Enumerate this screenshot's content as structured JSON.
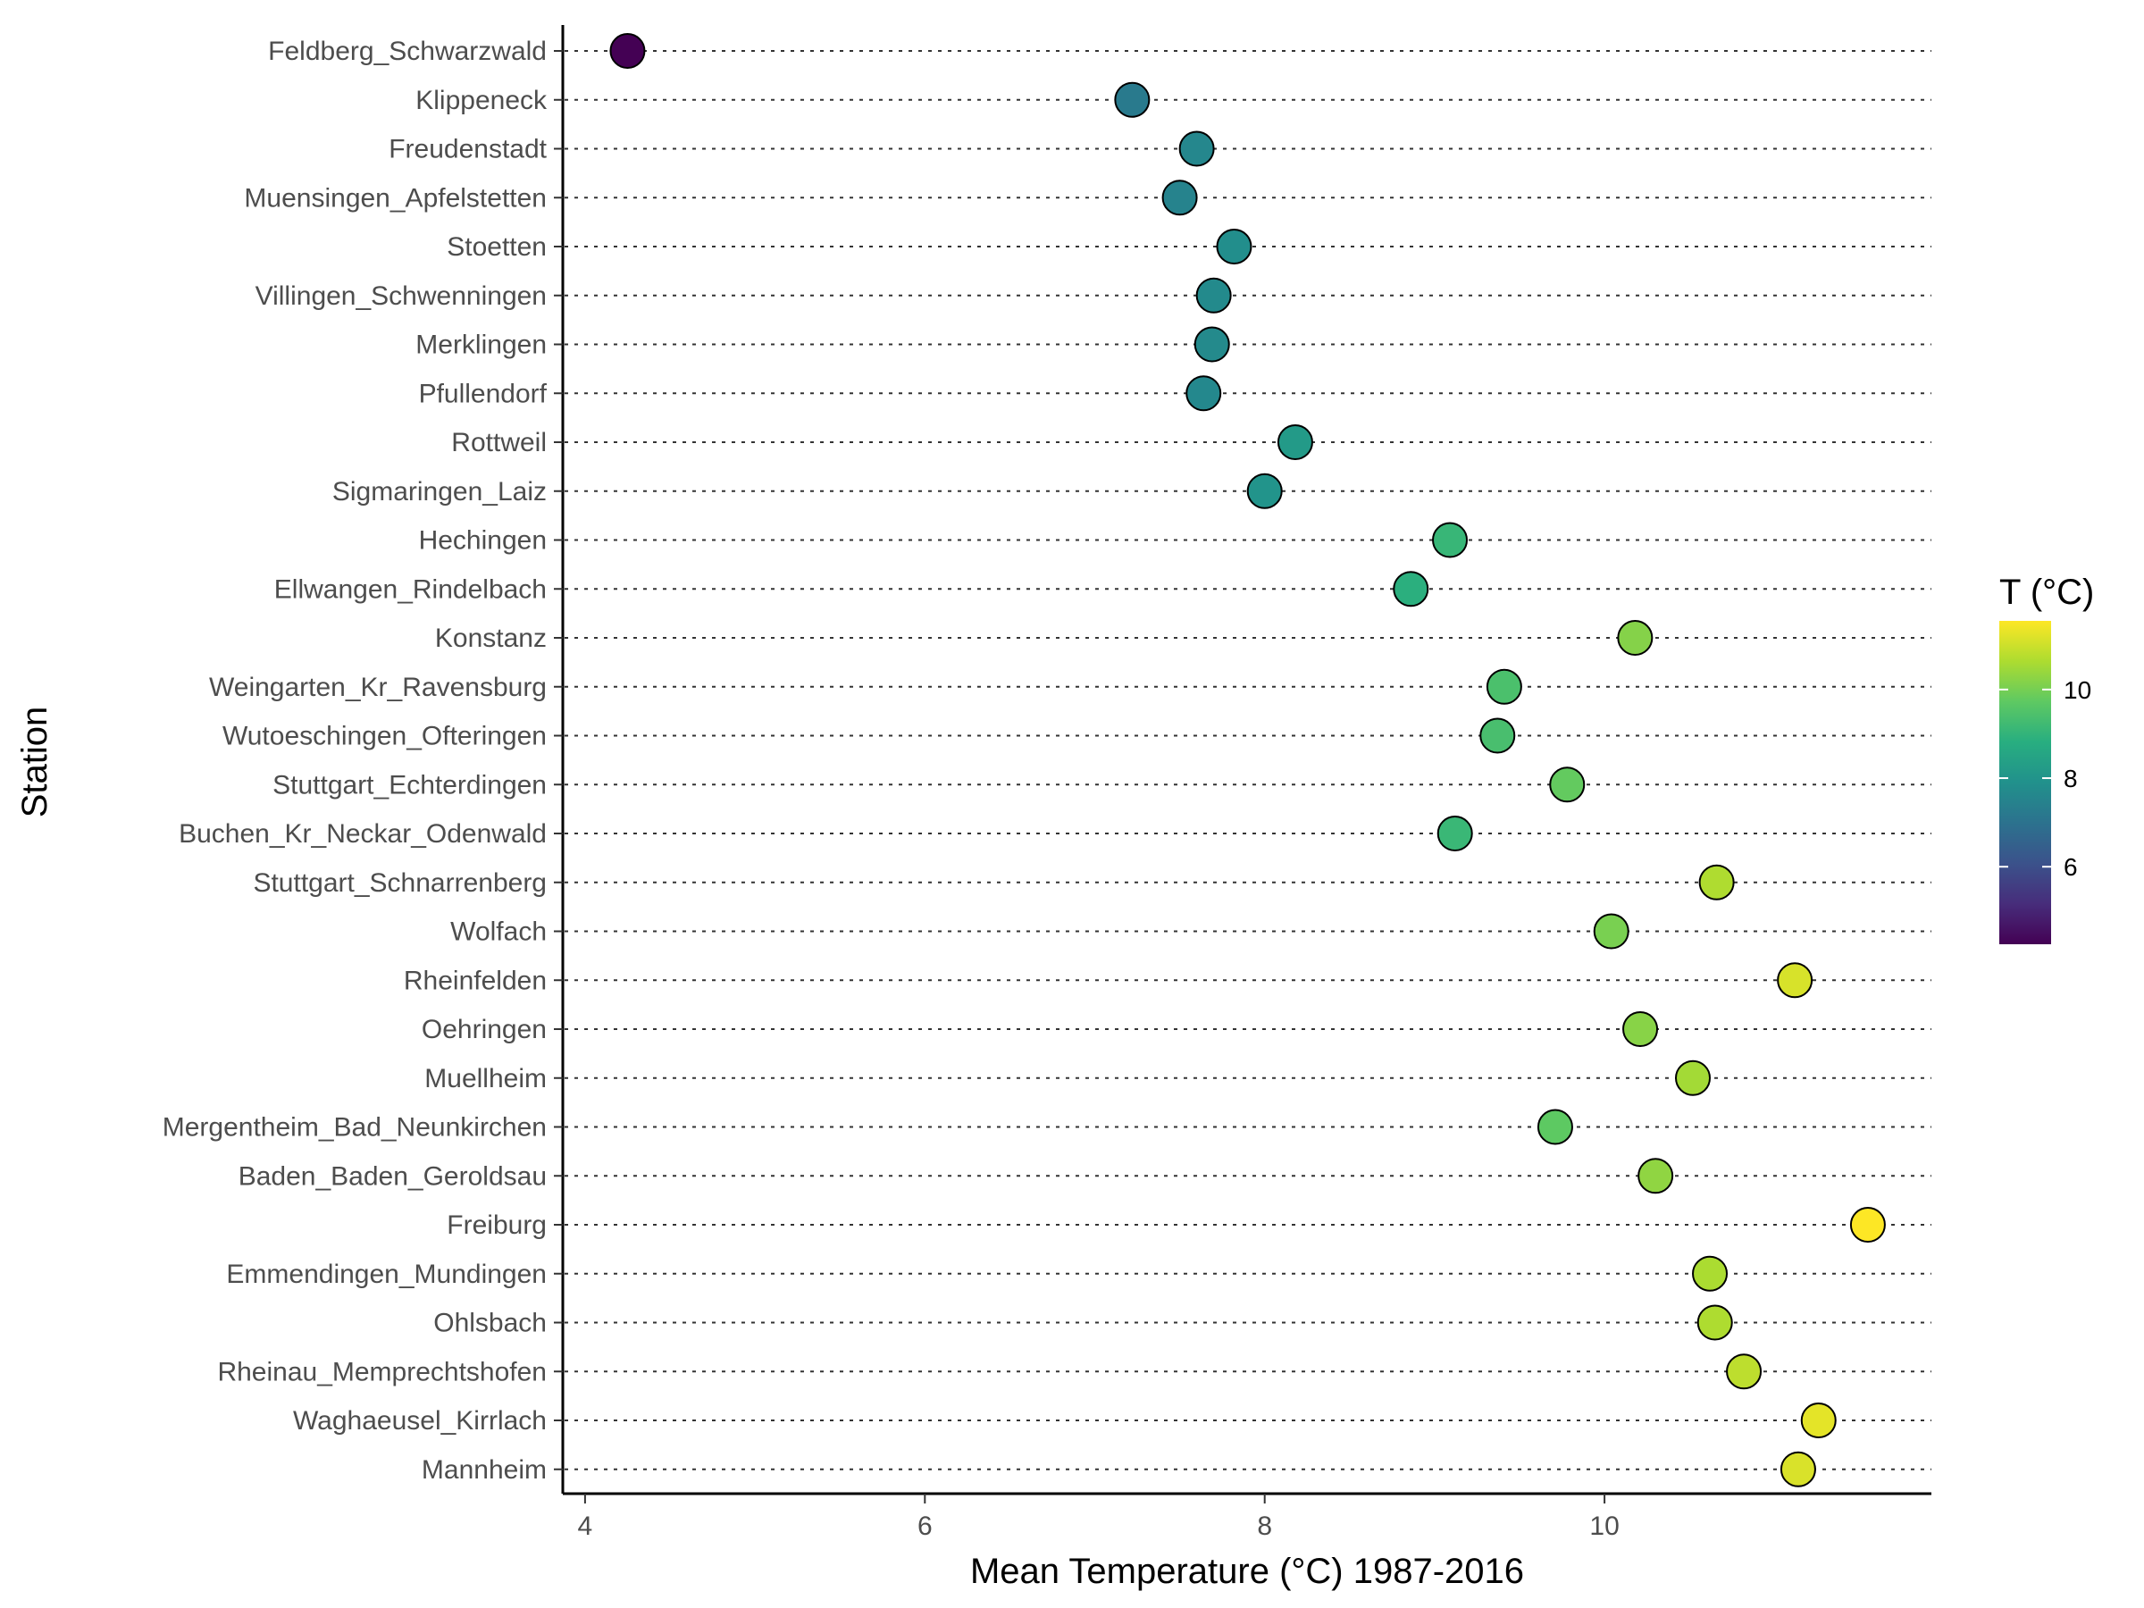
{
  "chart_data": {
    "type": "scatter",
    "title": "",
    "xlabel": "Mean Temperature (°C) 1987-2016",
    "ylabel": "Station",
    "xlim": [
      3.8,
      11.75
    ],
    "xticks": [
      4,
      6,
      8,
      10
    ],
    "grid": "horizontal dotted",
    "legend": {
      "title": "T (°C)",
      "position": "right",
      "type": "colorbar",
      "range": [
        4.25,
        11.55
      ],
      "ticks": [
        6,
        8,
        10
      ],
      "palette": "viridis"
    },
    "points": [
      {
        "station": "Feldberg_Schwarzwald",
        "value": 4.25
      },
      {
        "station": "Klippeneck",
        "value": 7.22
      },
      {
        "station": "Freudenstadt",
        "value": 7.6
      },
      {
        "station": "Muensingen_Apfelstetten",
        "value": 7.5
      },
      {
        "station": "Stoetten",
        "value": 7.82
      },
      {
        "station": "Villingen_Schwenningen",
        "value": 7.7
      },
      {
        "station": "Merklingen",
        "value": 7.69
      },
      {
        "station": "Pfullendorf",
        "value": 7.64
      },
      {
        "station": "Rottweil",
        "value": 8.18
      },
      {
        "station": "Sigmaringen_Laiz",
        "value": 8.0
      },
      {
        "station": "Hechingen",
        "value": 9.09
      },
      {
        "station": "Ellwangen_Rindelbach",
        "value": 8.86
      },
      {
        "station": "Konstanz",
        "value": 10.18
      },
      {
        "station": "Weingarten_Kr_Ravensburg",
        "value": 9.41
      },
      {
        "station": "Wutoeschingen_Ofteringen",
        "value": 9.37
      },
      {
        "station": "Stuttgart_Echterdingen",
        "value": 9.78
      },
      {
        "station": "Buchen_Kr_Neckar_Odenwald",
        "value": 9.12
      },
      {
        "station": "Stuttgart_Schnarrenberg",
        "value": 10.66
      },
      {
        "station": "Wolfach",
        "value": 10.04
      },
      {
        "station": "Rheinfelden",
        "value": 11.12
      },
      {
        "station": "Oehringen",
        "value": 10.21
      },
      {
        "station": "Muellheim",
        "value": 10.52
      },
      {
        "station": "Mergentheim_Bad_Neunkirchen",
        "value": 9.71
      },
      {
        "station": "Baden_Baden_Geroldsau",
        "value": 10.3
      },
      {
        "station": "Freiburg",
        "value": 11.55
      },
      {
        "station": "Emmendingen_Mundingen",
        "value": 10.62
      },
      {
        "station": "Ohlsbach",
        "value": 10.65
      },
      {
        "station": "Rheinau_Memprechtshofen",
        "value": 10.82
      },
      {
        "station": "Waghaeusel_Kirrlach",
        "value": 11.26
      },
      {
        "station": "Mannheim",
        "value": 11.14
      }
    ]
  }
}
